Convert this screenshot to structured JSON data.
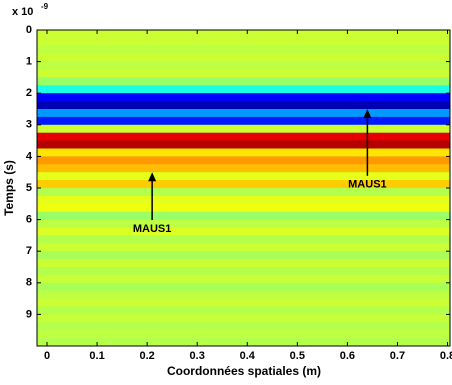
{
  "chart_data": {
    "type": "heatmap",
    "xlabel": "Coordonnées spatiales (m)",
    "ylabel": "Temps (s)",
    "y_multiplier": {
      "base": "x 10",
      "exponent": "-9"
    },
    "xlim": [
      -0.02,
      0.805
    ],
    "xticks": [
      0,
      0.1,
      0.2,
      0.3,
      0.4,
      0.5,
      0.6,
      0.7,
      0.8
    ],
    "ylim": [
      0,
      10
    ],
    "yticks": [
      0,
      1,
      2,
      3,
      4,
      5,
      6,
      7,
      8,
      9
    ],
    "y_reversed": true,
    "colormap": "jet",
    "clim": [
      -1,
      1
    ],
    "ybins": [
      0,
      0.25,
      0.5,
      0.75,
      1,
      1.25,
      1.5,
      1.75,
      2,
      2.25,
      2.5,
      2.75,
      3,
      3.25,
      3.5,
      3.75,
      4,
      4.25,
      4.5,
      4.75,
      5,
      5.25,
      5.5,
      5.75,
      6,
      6.25,
      6.5,
      6.75,
      7,
      7.25,
      7.5,
      7.75,
      8,
      8.25,
      8.5,
      8.75,
      9,
      9.25,
      9.5,
      9.75,
      10
    ],
    "values": [
      0.15,
      0.15,
      0.12,
      0.15,
      0.12,
      0.15,
      0.05,
      -0.2,
      -0.75,
      -0.9,
      -0.45,
      -0.7,
      0.15,
      0.8,
      0.9,
      0.3,
      0.45,
      0.38,
      0.2,
      0.35,
      0.1,
      0.2,
      0.22,
      0.05,
      0.12,
      0.18,
      0.1,
      0.15,
      0.08,
      0.15,
      0.1,
      0.14,
      0.08,
      0.12,
      0.15,
      0.1,
      0.14,
      0.1,
      0.12,
      0.1
    ],
    "annotations": [
      {
        "text": "MAUS1",
        "x": 0.64,
        "y": 2.5,
        "text_y": 4.9
      },
      {
        "text": "MAUS1",
        "x": 0.21,
        "y": 4.5,
        "text_y": 6.3
      }
    ]
  }
}
